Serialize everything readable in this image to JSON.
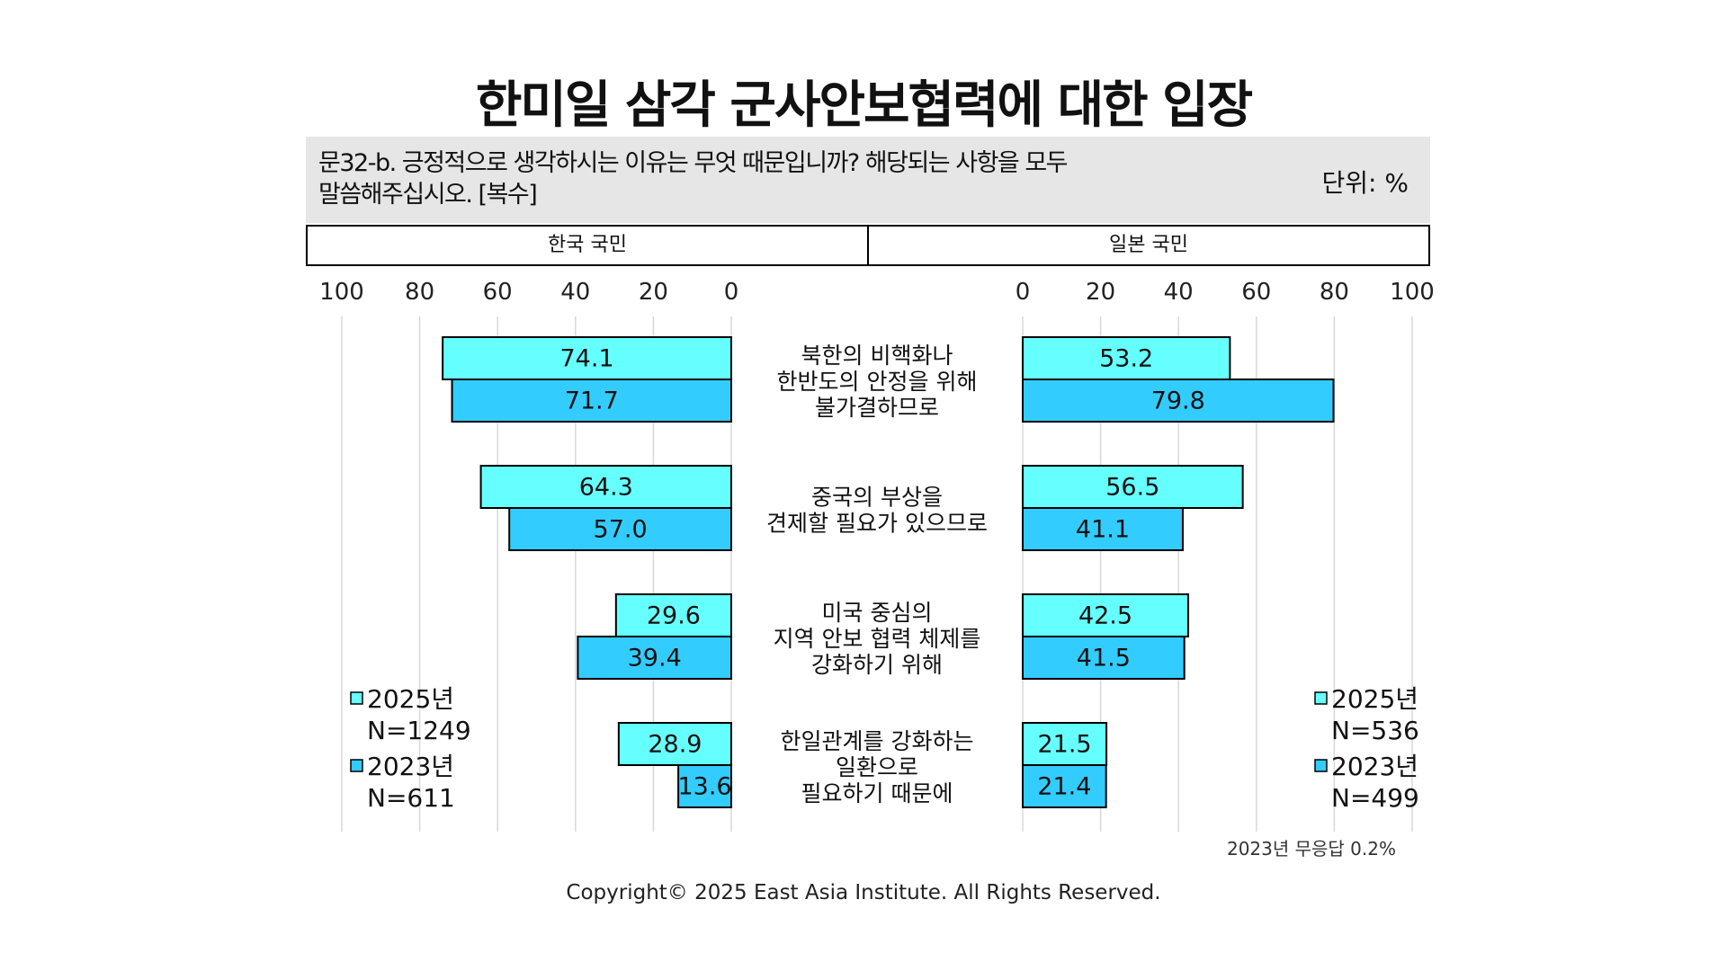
{
  "title": "한미일 삼각 군사안보협력에 대한 입장",
  "question": "문32-b. 긍정적으로 생각하시는 이유는 무엇 때문입니까? 해당되는 사항을 모두 말씀해주십시오. [복수]",
  "unit": "단위: %",
  "panel_headers": {
    "left": "한국 국민",
    "right": "일본 국민"
  },
  "colors": {
    "s2025": "#66ffff",
    "s2023": "#33ccff",
    "grid": "#d8d8d8",
    "border": "#000000"
  },
  "chart_data": {
    "type": "bar",
    "orientation": "horizontal-butterfly",
    "xlim": [
      0,
      100
    ],
    "ticks": [
      0,
      20,
      40,
      60,
      80,
      100
    ],
    "categories": [
      "북한의 비핵화나\n한반도의 안정을 위해\n불가결하므로",
      "중국의 부상을\n견제할 필요가 있으므로",
      "미국 중심의\n지역 안보 협력 체제를\n강화하기 위해",
      "한일관계를 강화하는\n일환으로\n필요하기 때문에"
    ],
    "panels": [
      {
        "name": "한국 국민",
        "series": [
          {
            "name": "2025년",
            "values": [
              74.1,
              64.3,
              29.6,
              28.9
            ]
          },
          {
            "name": "2023년",
            "values": [
              71.7,
              57.0,
              39.4,
              13.6
            ]
          }
        ],
        "legend": [
          {
            "label": "2025년",
            "n": "N=1249"
          },
          {
            "label": "2023년",
            "n": "N=611"
          }
        ]
      },
      {
        "name": "일본 국민",
        "series": [
          {
            "name": "2025년",
            "values": [
              53.2,
              56.5,
              42.5,
              21.5
            ]
          },
          {
            "name": "2023년",
            "values": [
              79.8,
              41.1,
              41.5,
              21.4
            ]
          }
        ],
        "legend": [
          {
            "label": "2025년",
            "n": "N=536"
          },
          {
            "label": "2023년",
            "n": "N=499"
          }
        ]
      }
    ]
  },
  "footnote": "2023년 무응답 0.2%",
  "copyright": "Copyright© 2025 East Asia Institute. All Rights Reserved."
}
